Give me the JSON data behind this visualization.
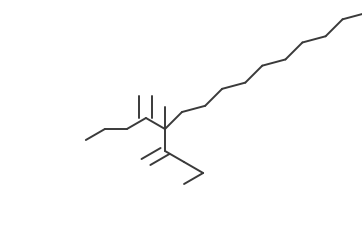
{
  "background_color": "#ffffff",
  "line_color": "#3a3a3a",
  "line_width": 1.4,
  "figsize": [
    3.62,
    2.26
  ],
  "dpi": 100
}
